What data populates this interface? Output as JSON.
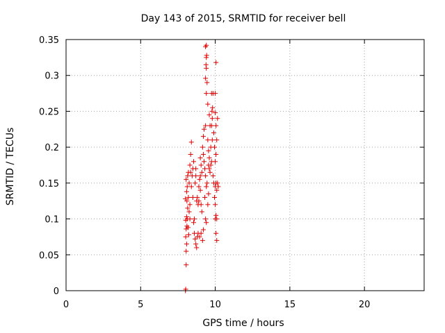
{
  "chart_data": {
    "type": "scatter",
    "title": "Day 143 of 2015, SRMTID for receiver bell",
    "xlabel": "GPS time / hours",
    "ylabel": "SRMTID / TECUs",
    "xlim": [
      0,
      24
    ],
    "ylim": [
      0,
      0.35
    ],
    "x_ticks": [
      "0",
      "5",
      "10",
      "15",
      "20"
    ],
    "x_tick_values": [
      0,
      5,
      10,
      15,
      20
    ],
    "y_ticks": [
      "0",
      "0.05",
      "0.1",
      "0.15",
      "0.2",
      "0.25",
      "0.3",
      "0.35"
    ],
    "y_tick_values": [
      0,
      0.05,
      0.1,
      0.15,
      0.2,
      0.25,
      0.3,
      0.35
    ],
    "grid": true,
    "marker": "plus",
    "color": "#e00000",
    "series": [
      {
        "values": [
          [
            8.0,
            0.0
          ],
          [
            8.02,
            0.002
          ],
          [
            8.05,
            0.036
          ],
          [
            8.05,
            0.055
          ],
          [
            8.08,
            0.065
          ],
          [
            8.02,
            0.075
          ],
          [
            8.05,
            0.086
          ],
          [
            8.1,
            0.09
          ],
          [
            8.02,
            0.098
          ],
          [
            8.08,
            0.103
          ],
          [
            8.12,
            0.1
          ],
          [
            8.0,
            0.128
          ],
          [
            8.08,
            0.138
          ],
          [
            8.12,
            0.145
          ],
          [
            8.05,
            0.155
          ],
          [
            8.15,
            0.16
          ],
          [
            8.2,
            0.165
          ],
          [
            8.25,
            0.15
          ],
          [
            8.2,
            0.13
          ],
          [
            8.3,
            0.12
          ],
          [
            8.25,
            0.11
          ],
          [
            8.3,
            0.175
          ],
          [
            8.35,
            0.19
          ],
          [
            8.4,
            0.207
          ],
          [
            8.35,
            0.165
          ],
          [
            8.45,
            0.16
          ],
          [
            8.4,
            0.145
          ],
          [
            8.5,
            0.13
          ],
          [
            8.55,
            0.095
          ],
          [
            8.6,
            0.08
          ],
          [
            8.65,
            0.072
          ],
          [
            8.7,
            0.065
          ],
          [
            8.75,
            0.06
          ],
          [
            8.6,
            0.1
          ],
          [
            8.65,
            0.15
          ],
          [
            8.7,
            0.16
          ],
          [
            8.75,
            0.125
          ],
          [
            8.8,
            0.13
          ],
          [
            8.85,
            0.12
          ],
          [
            8.9,
            0.125
          ],
          [
            8.8,
            0.075
          ],
          [
            8.85,
            0.08
          ],
          [
            8.7,
            0.17
          ],
          [
            8.9,
            0.145
          ],
          [
            8.95,
            0.155
          ],
          [
            9.0,
            0.16
          ],
          [
            9.0,
            0.14
          ],
          [
            9.05,
            0.175
          ],
          [
            9.1,
            0.165
          ],
          [
            9.05,
            0.12
          ],
          [
            9.1,
            0.11
          ],
          [
            9.0,
            0.185
          ],
          [
            9.15,
            0.2
          ],
          [
            9.2,
            0.215
          ],
          [
            9.25,
            0.225
          ],
          [
            9.2,
            0.19
          ],
          [
            9.25,
            0.18
          ],
          [
            9.3,
            0.17
          ],
          [
            9.3,
            0.13
          ],
          [
            9.35,
            0.1
          ],
          [
            9.4,
            0.095
          ],
          [
            9.35,
            0.16
          ],
          [
            9.4,
            0.145
          ],
          [
            9.45,
            0.15
          ],
          [
            9.35,
            0.23
          ],
          [
            9.4,
            0.275
          ],
          [
            9.45,
            0.29
          ],
          [
            9.35,
            0.296
          ],
          [
            9.4,
            0.31
          ],
          [
            9.38,
            0.315
          ],
          [
            9.4,
            0.325
          ],
          [
            9.42,
            0.328
          ],
          [
            9.35,
            0.34
          ],
          [
            9.4,
            0.342
          ],
          [
            9.5,
            0.21
          ],
          [
            9.55,
            0.195
          ],
          [
            9.6,
            0.185
          ],
          [
            9.55,
            0.175
          ],
          [
            9.6,
            0.17
          ],
          [
            9.65,
            0.165
          ],
          [
            9.7,
            0.175
          ],
          [
            9.75,
            0.18
          ],
          [
            9.7,
            0.2
          ],
          [
            9.8,
            0.21
          ],
          [
            9.75,
            0.23
          ],
          [
            9.8,
            0.24
          ],
          [
            9.78,
            0.25
          ],
          [
            9.82,
            0.255
          ],
          [
            9.75,
            0.275
          ],
          [
            9.85,
            0.275
          ],
          [
            9.9,
            0.22
          ],
          [
            9.95,
            0.2
          ],
          [
            9.85,
            0.16
          ],
          [
            9.9,
            0.15
          ],
          [
            9.95,
            0.13
          ],
          [
            10.0,
            0.12
          ],
          [
            10.0,
            0.1
          ],
          [
            10.05,
            0.105
          ],
          [
            10.1,
            0.1
          ],
          [
            10.05,
            0.08
          ],
          [
            10.1,
            0.07
          ],
          [
            10.0,
            0.145
          ],
          [
            10.05,
            0.15
          ],
          [
            10.1,
            0.14
          ],
          [
            10.0,
            0.18
          ],
          [
            10.05,
            0.19
          ],
          [
            10.1,
            0.21
          ],
          [
            10.15,
            0.24
          ],
          [
            10.05,
            0.23
          ],
          [
            10.0,
            0.248
          ],
          [
            10.0,
            0.275
          ],
          [
            10.05,
            0.318
          ],
          [
            10.15,
            0.15
          ],
          [
            10.2,
            0.145
          ],
          [
            9.5,
            0.26
          ],
          [
            9.6,
            0.245
          ],
          [
            9.65,
            0.23
          ],
          [
            9.5,
            0.12
          ],
          [
            9.55,
            0.135
          ],
          [
            9.2,
            0.085
          ],
          [
            9.15,
            0.07
          ],
          [
            9.05,
            0.08
          ],
          [
            8.95,
            0.075
          ],
          [
            8.5,
            0.17
          ],
          [
            8.55,
            0.18
          ],
          [
            8.3,
            0.1
          ],
          [
            8.15,
            0.115
          ],
          [
            8.1,
            0.125
          ],
          [
            8.18,
            0.088
          ],
          [
            8.22,
            0.078
          ]
        ]
      }
    ]
  }
}
